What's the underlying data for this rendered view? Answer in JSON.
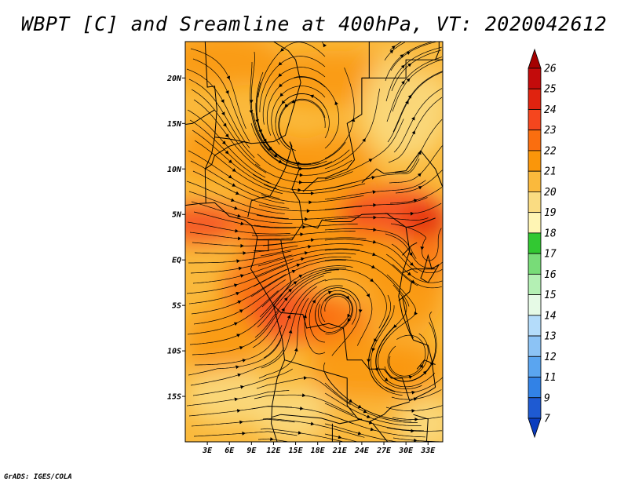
{
  "title": "WBPT [C] and Sreamline at 400hPa, VT: 2020042612",
  "credit": "GrADS: IGES/COLA",
  "chart_data": {
    "type": "map",
    "variable": "Wet-bulb potential temperature",
    "units": "C",
    "level": "400hPa",
    "valid_time": "2020042612",
    "overlay": "streamlines",
    "lon_range": [
      0,
      35
    ],
    "lat_range": [
      -20,
      24
    ],
    "x_ticks": [
      "3E",
      "6E",
      "9E",
      "12E",
      "15E",
      "18E",
      "21E",
      "24E",
      "27E",
      "30E",
      "33E"
    ],
    "x_tick_values": [
      3,
      6,
      9,
      12,
      15,
      18,
      21,
      24,
      27,
      30,
      33
    ],
    "y_ticks": [
      "20N",
      "15N",
      "10N",
      "5N",
      "EQ",
      "5S",
      "10S",
      "15S"
    ],
    "y_tick_values": [
      20,
      15,
      10,
      5,
      0,
      -5,
      -10,
      -15
    ],
    "colorbar": {
      "labels": [
        "26",
        "25",
        "24",
        "23",
        "22",
        "21",
        "20",
        "19",
        "18",
        "17",
        "16",
        "15",
        "14",
        "13",
        "12",
        "11",
        "9",
        "7"
      ],
      "colors": [
        "#a50000",
        "#c30b0b",
        "#e0230f",
        "#f5461e",
        "#fa6e0f",
        "#fa960a",
        "#fab93c",
        "#fadc82",
        "#fff5b4",
        "#32c832",
        "#78dc78",
        "#b4f0b4",
        "#e6fae6",
        "#b4dcfa",
        "#8cc3f5",
        "#5aa5f0",
        "#3282e6",
        "#1e5ad2",
        "#0a3cbe"
      ]
    }
  }
}
